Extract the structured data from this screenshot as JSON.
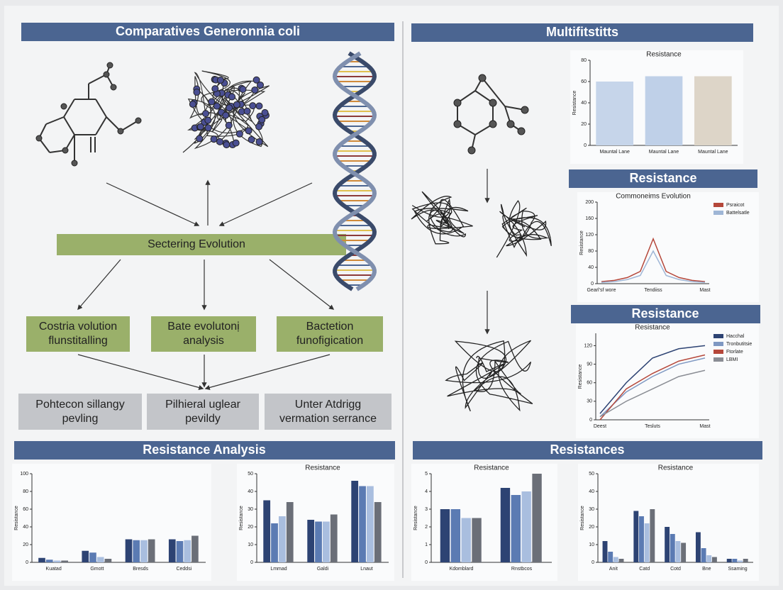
{
  "left": {
    "title": "Comparatives Generonnia coli",
    "center": "Sectering Evolution",
    "green": [
      [
        "Costria volution",
        "flunstitalling"
      ],
      [
        "Bate evolutonị",
        "analysis"
      ],
      [
        "Bactetion",
        "funofigication"
      ]
    ],
    "gray": [
      [
        "Pohtecon sillangy",
        "pevling"
      ],
      [
        "Pilhieral uglear",
        "pevildy"
      ],
      [
        "Unter Atdrigg",
        "vermation serrance"
      ]
    ]
  },
  "right": {
    "title": "Multifitstitts",
    "header2": "Resistance",
    "header3": "Resistance"
  },
  "bottom_left": {
    "title": "Resistance Analysis"
  },
  "bottom_right": {
    "title": "Resistances"
  },
  "charts": [
    {
      "type": "bar",
      "title": "Resistance",
      "ylabel": "Resistance",
      "categories": [
        "Mauntal Lane",
        "Mauntal Lane",
        "Mauntal Lane"
      ],
      "values": [
        60,
        65,
        65
      ],
      "colors": [
        "#c6d5ea",
        "#bfd0e8",
        "#ddd5c8"
      ],
      "ylim": [
        0,
        80
      ],
      "yticks": [
        0,
        20,
        40,
        60,
        80
      ]
    },
    {
      "type": "line",
      "title": "Commoneims Evolution",
      "ylabel": "Resistance",
      "categories": [
        "Gearl'sf wore",
        null,
        null,
        null,
        "Tendiiss",
        null,
        null,
        null,
        "Mast"
      ],
      "legend": "upper right",
      "series": [
        {
          "name": "Psraicot",
          "color": "#b5473a",
          "values": [
            5,
            8,
            15,
            30,
            110,
            30,
            15,
            8,
            5
          ]
        },
        {
          "name": "Battelsatle",
          "color": "#9fb6d6",
          "values": [
            3,
            5,
            10,
            20,
            80,
            20,
            10,
            5,
            3
          ]
        }
      ],
      "ylim": [
        0,
        200
      ],
      "yticks": [
        0,
        40,
        80,
        120,
        160,
        200
      ]
    },
    {
      "type": "line",
      "title": "Resistance",
      "ylabel": "Resistance",
      "categories": [
        "Deest",
        null,
        "Tesluts",
        null,
        "Mast"
      ],
      "legend": "upper right",
      "series": [
        {
          "name": "Hacchal",
          "color": "#2d4373",
          "values": [
            10,
            60,
            100,
            115,
            120
          ]
        },
        {
          "name": "Tronbutitsie",
          "color": "#7f98c2",
          "values": [
            5,
            45,
            70,
            90,
            100
          ]
        },
        {
          "name": "Ftorlate",
          "color": "#b5473a",
          "values": [
            0,
            50,
            75,
            95,
            105
          ]
        },
        {
          "name": "LBMI",
          "color": "#8a8d94",
          "values": [
            5,
            30,
            50,
            70,
            80
          ]
        }
      ],
      "ylim": [
        0,
        140
      ],
      "yticks": [
        0,
        30,
        60,
        90,
        120
      ]
    },
    {
      "type": "bar",
      "ylabel": "Resistance",
      "categories": [
        "Kuatad",
        "Gmott",
        "Bresds",
        "Ceddsi"
      ],
      "series": [
        {
          "color": "#2d4373",
          "values": [
            5,
            13,
            26,
            26
          ]
        },
        {
          "color": "#5b7bb3",
          "values": [
            3,
            11,
            25,
            24
          ]
        },
        {
          "color": "#a9bedf",
          "values": [
            2,
            6,
            25,
            25
          ]
        },
        {
          "color": "#6b6f78",
          "values": [
            2,
            4,
            26,
            30
          ]
        }
      ],
      "ylim": [
        0,
        100
      ],
      "yticks": [
        0,
        20,
        40,
        60,
        80,
        100
      ]
    },
    {
      "type": "bar",
      "title": "Resistance",
      "ylabel": "Resistance",
      "categories": [
        "Lmmad",
        "Galdi",
        "Lnaut"
      ],
      "series": [
        {
          "color": "#2d4373",
          "values": [
            35,
            24,
            46
          ]
        },
        {
          "color": "#5b7bb3",
          "values": [
            22,
            23,
            43
          ]
        },
        {
          "color": "#a9bedf",
          "values": [
            26,
            23,
            43
          ]
        },
        {
          "color": "#6b6f78",
          "values": [
            34,
            27,
            34
          ]
        }
      ],
      "ylim": [
        0,
        50
      ],
      "yticks": [
        0,
        10,
        20,
        30,
        40,
        50
      ]
    },
    {
      "type": "bar",
      "title": "Resistance",
      "ylabel": "Resistance",
      "categories": [
        "Kdomblard",
        "Rnstbcos"
      ],
      "series": [
        {
          "color": "#2d4373",
          "values": [
            3,
            4.2
          ]
        },
        {
          "color": "#5b7bb3",
          "values": [
            3,
            3.8
          ]
        },
        {
          "color": "#a9bedf",
          "values": [
            2.5,
            4
          ]
        },
        {
          "color": "#6b6f78",
          "values": [
            2.5,
            5
          ]
        }
      ],
      "ylim": [
        0,
        5
      ],
      "yticks": [
        0,
        1,
        2,
        3,
        4,
        5
      ]
    },
    {
      "type": "bar",
      "title": "Resistance",
      "ylabel": "Resistance",
      "categories": [
        "Anit",
        "Catd",
        "Cotd",
        "Bne",
        "Ssaming"
      ],
      "series": [
        {
          "color": "#2d4373",
          "values": [
            12,
            29,
            20,
            17,
            2
          ]
        },
        {
          "color": "#5b7bb3",
          "values": [
            6,
            26,
            16,
            8,
            2
          ]
        },
        {
          "color": "#a9bedf",
          "values": [
            3,
            22,
            12,
            4,
            1
          ]
        },
        {
          "color": "#6b6f78",
          "values": [
            2,
            30,
            11,
            3,
            2
          ]
        }
      ],
      "ylim": [
        0,
        50
      ],
      "yticks": [
        0,
        10,
        20,
        30,
        40,
        50
      ]
    }
  ]
}
